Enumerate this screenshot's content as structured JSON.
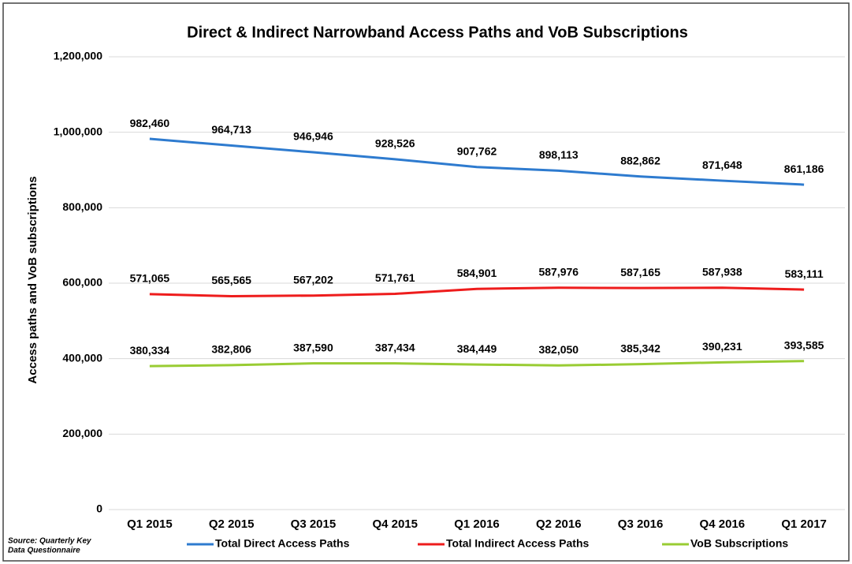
{
  "chart_data": {
    "type": "line",
    "title": "Direct & Indirect Narrowband Access Paths and VoB Subscriptions",
    "y_label": "Access paths and VoB subscriptions",
    "source": [
      "Source:  Quarterly Key",
      "Data Questionnaire"
    ],
    "categories": [
      "Q1 2015",
      "Q2 2015",
      "Q3 2015",
      "Q4 2015",
      "Q1 2016",
      "Q2 2016",
      "Q3 2016",
      "Q4 2016",
      "Q1 2017"
    ],
    "series": [
      {
        "name": "Total Direct Access Paths",
        "color": "#2e7bcf",
        "values": [
          982460,
          964713,
          946946,
          928526,
          907762,
          898113,
          882862,
          871648,
          861186
        ],
        "value_labels": [
          "982,460",
          "964,713",
          "946,946",
          "928,526",
          "907,762",
          "898,113",
          "882,862",
          "871,648",
          "861,186"
        ]
      },
      {
        "name": "Total Indirect Access Paths",
        "color": "#ee1c1c",
        "values": [
          571065,
          565565,
          567202,
          571761,
          584901,
          587976,
          587165,
          587938,
          583111
        ],
        "value_labels": [
          "571,065",
          "565,565",
          "567,202",
          "571,761",
          "584,901",
          "587,976",
          "587,165",
          "587,938",
          "583,111"
        ]
      },
      {
        "name": "VoB Subscriptions",
        "color": "#99cc33",
        "values": [
          380334,
          382806,
          387590,
          387434,
          384449,
          382050,
          385342,
          390231,
          393585
        ],
        "value_labels": [
          "380,334",
          "382,806",
          "387,590",
          "387,434",
          "384,449",
          "382,050",
          "385,342",
          "390,231",
          "393,585"
        ]
      }
    ],
    "ylim": [
      0,
      1200000
    ],
    "yticks": [
      0,
      {
        "value": 200000,
        "label": "200,000"
      },
      {
        "value": 400000,
        "label": "400,000"
      },
      {
        "value": 600000,
        "label": "600,000"
      },
      {
        "value": 800000,
        "label": "800,000"
      },
      {
        "value": 1000000,
        "label": "1,000,000"
      },
      {
        "value": 1200000,
        "label": "1,200,000"
      }
    ],
    "grid": true,
    "legend": "bottom"
  }
}
